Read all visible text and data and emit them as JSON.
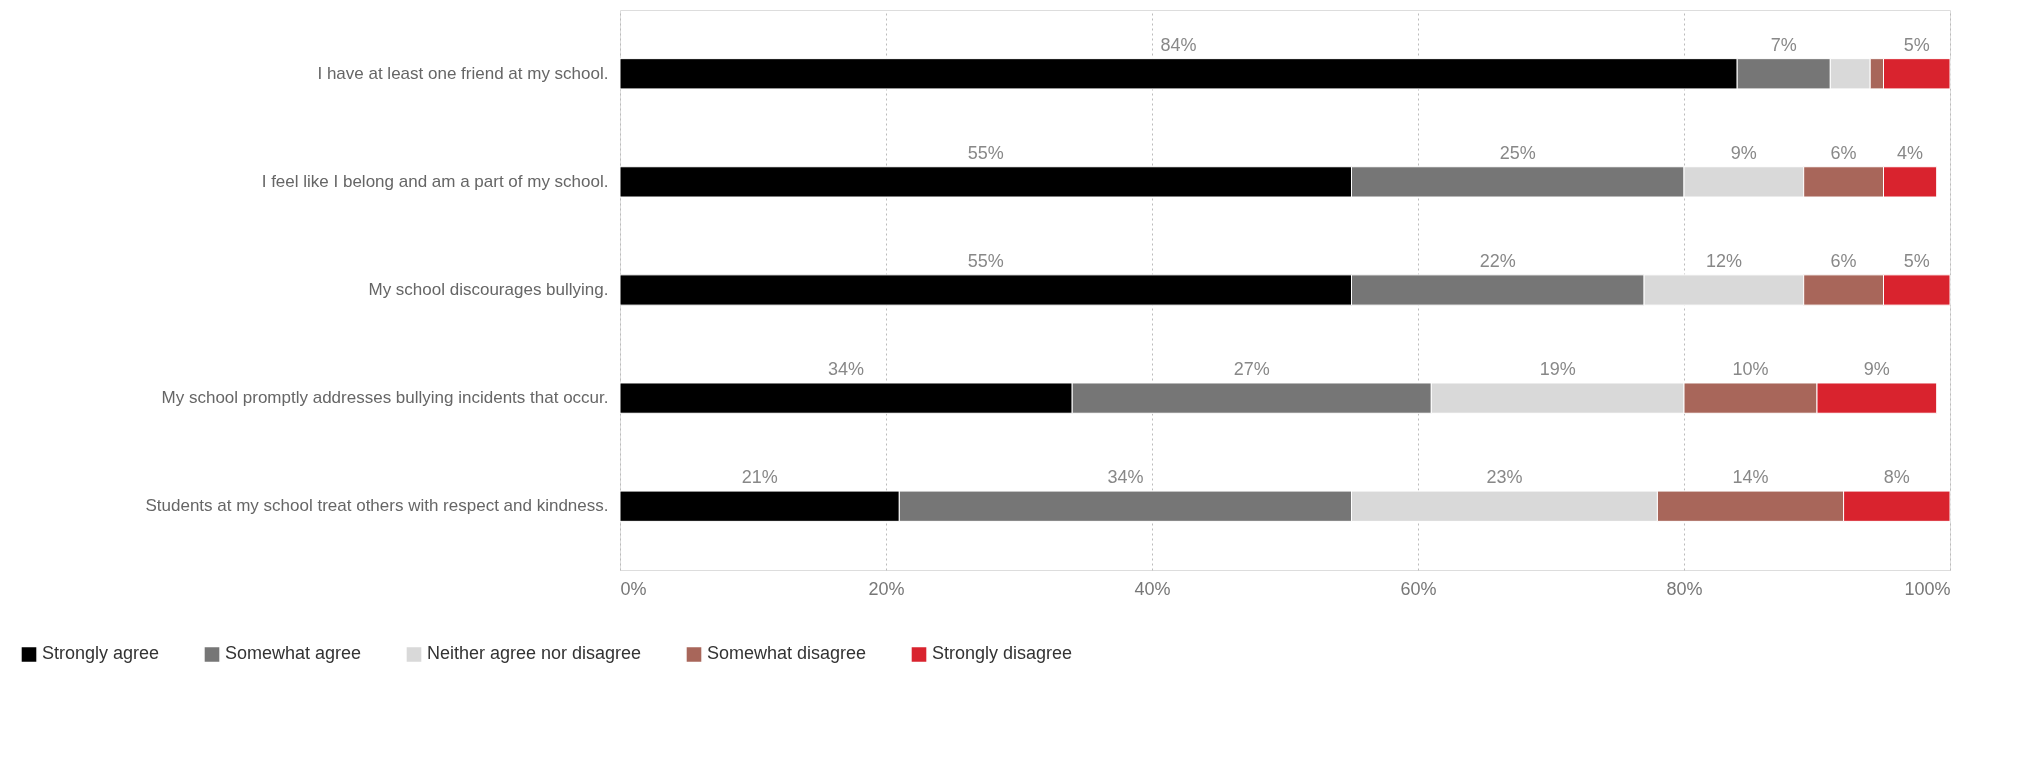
{
  "chart_data": {
    "type": "bar",
    "orientation": "horizontal",
    "stacked": true,
    "categories": [
      "I have at least one friend at my school.",
      "I feel like I belong and am a part of my school.",
      "My school discourages bullying.",
      "My school promptly addresses bullying incidents that occur.",
      "Students at my school treat others with respect and kindness."
    ],
    "series": [
      {
        "name": "Strongly agree",
        "color": "#000000",
        "values": [
          84,
          55,
          55,
          34,
          21
        ],
        "value_labels": [
          "84%",
          "55%",
          "55%",
          "34%",
          "21%"
        ]
      },
      {
        "name": "Somewhat agree",
        "color": "#767676",
        "values": [
          7,
          25,
          22,
          27,
          34
        ],
        "value_labels": [
          "7%",
          "25%",
          "22%",
          "27%",
          "34%"
        ]
      },
      {
        "name": "Neither agree nor disagree",
        "color": "#d9d9d9",
        "values": [
          3,
          9,
          12,
          19,
          23
        ],
        "value_labels": [
          null,
          "9%",
          "12%",
          "19%",
          "23%"
        ]
      },
      {
        "name": "Somewhat disagree",
        "color": "#a8665a",
        "values": [
          1,
          6,
          6,
          10,
          14
        ],
        "value_labels": [
          null,
          "6%",
          "6%",
          "10%",
          "14%"
        ]
      },
      {
        "name": "Strongly disagree",
        "color": "#d9232e",
        "values": [
          5,
          4,
          5,
          9,
          8
        ],
        "value_labels": [
          "5%",
          "4%",
          "5%",
          "9%",
          "8%"
        ]
      }
    ],
    "xlim": [
      0,
      100
    ],
    "xticks": [
      {
        "value": 0,
        "label": "0%"
      },
      {
        "value": 20,
        "label": "20%"
      },
      {
        "value": 40,
        "label": "40%"
      },
      {
        "value": 60,
        "label": "60%"
      },
      {
        "value": 80,
        "label": "80%"
      },
      {
        "value": 100,
        "label": "100%"
      }
    ],
    "grid": "x",
    "legend": "bottom left"
  }
}
